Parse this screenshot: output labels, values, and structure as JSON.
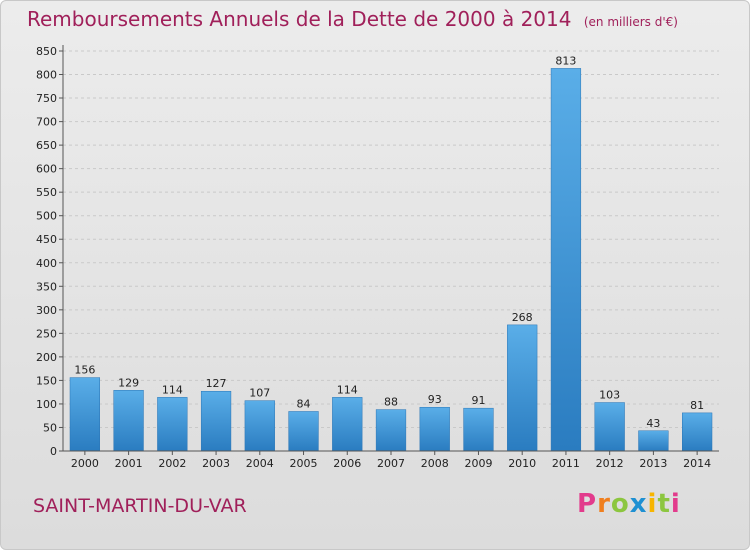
{
  "header": {
    "title": "Remboursements Annuels de la Dette de 2000 à 2014",
    "unit": "(en milliers d'€)"
  },
  "footer": {
    "commune": "SAINT-MARTIN-DU-VAR",
    "logo_letters": [
      "P",
      "r",
      "o",
      "x",
      "i",
      "t",
      "i"
    ],
    "logo_colors": [
      "#e23b8c",
      "#f07f1e",
      "#8cc63f",
      "#1e90d2",
      "#f7b500",
      "#8cc63f",
      "#e23b8c"
    ]
  },
  "chart_data": {
    "type": "bar",
    "categories": [
      "2000",
      "2001",
      "2002",
      "2003",
      "2004",
      "2005",
      "2006",
      "2007",
      "2008",
      "2009",
      "2010",
      "2011",
      "2012",
      "2013",
      "2014"
    ],
    "values": [
      156,
      129,
      114,
      127,
      107,
      84,
      114,
      88,
      93,
      91,
      268,
      813,
      103,
      43,
      81
    ],
    "ylim": [
      0,
      850
    ],
    "yticks": [
      0,
      50,
      100,
      150,
      200,
      250,
      300,
      350,
      400,
      450,
      500,
      550,
      600,
      650,
      700,
      750,
      800,
      850
    ],
    "grid": true,
    "bar_color": "#3d94d8"
  }
}
